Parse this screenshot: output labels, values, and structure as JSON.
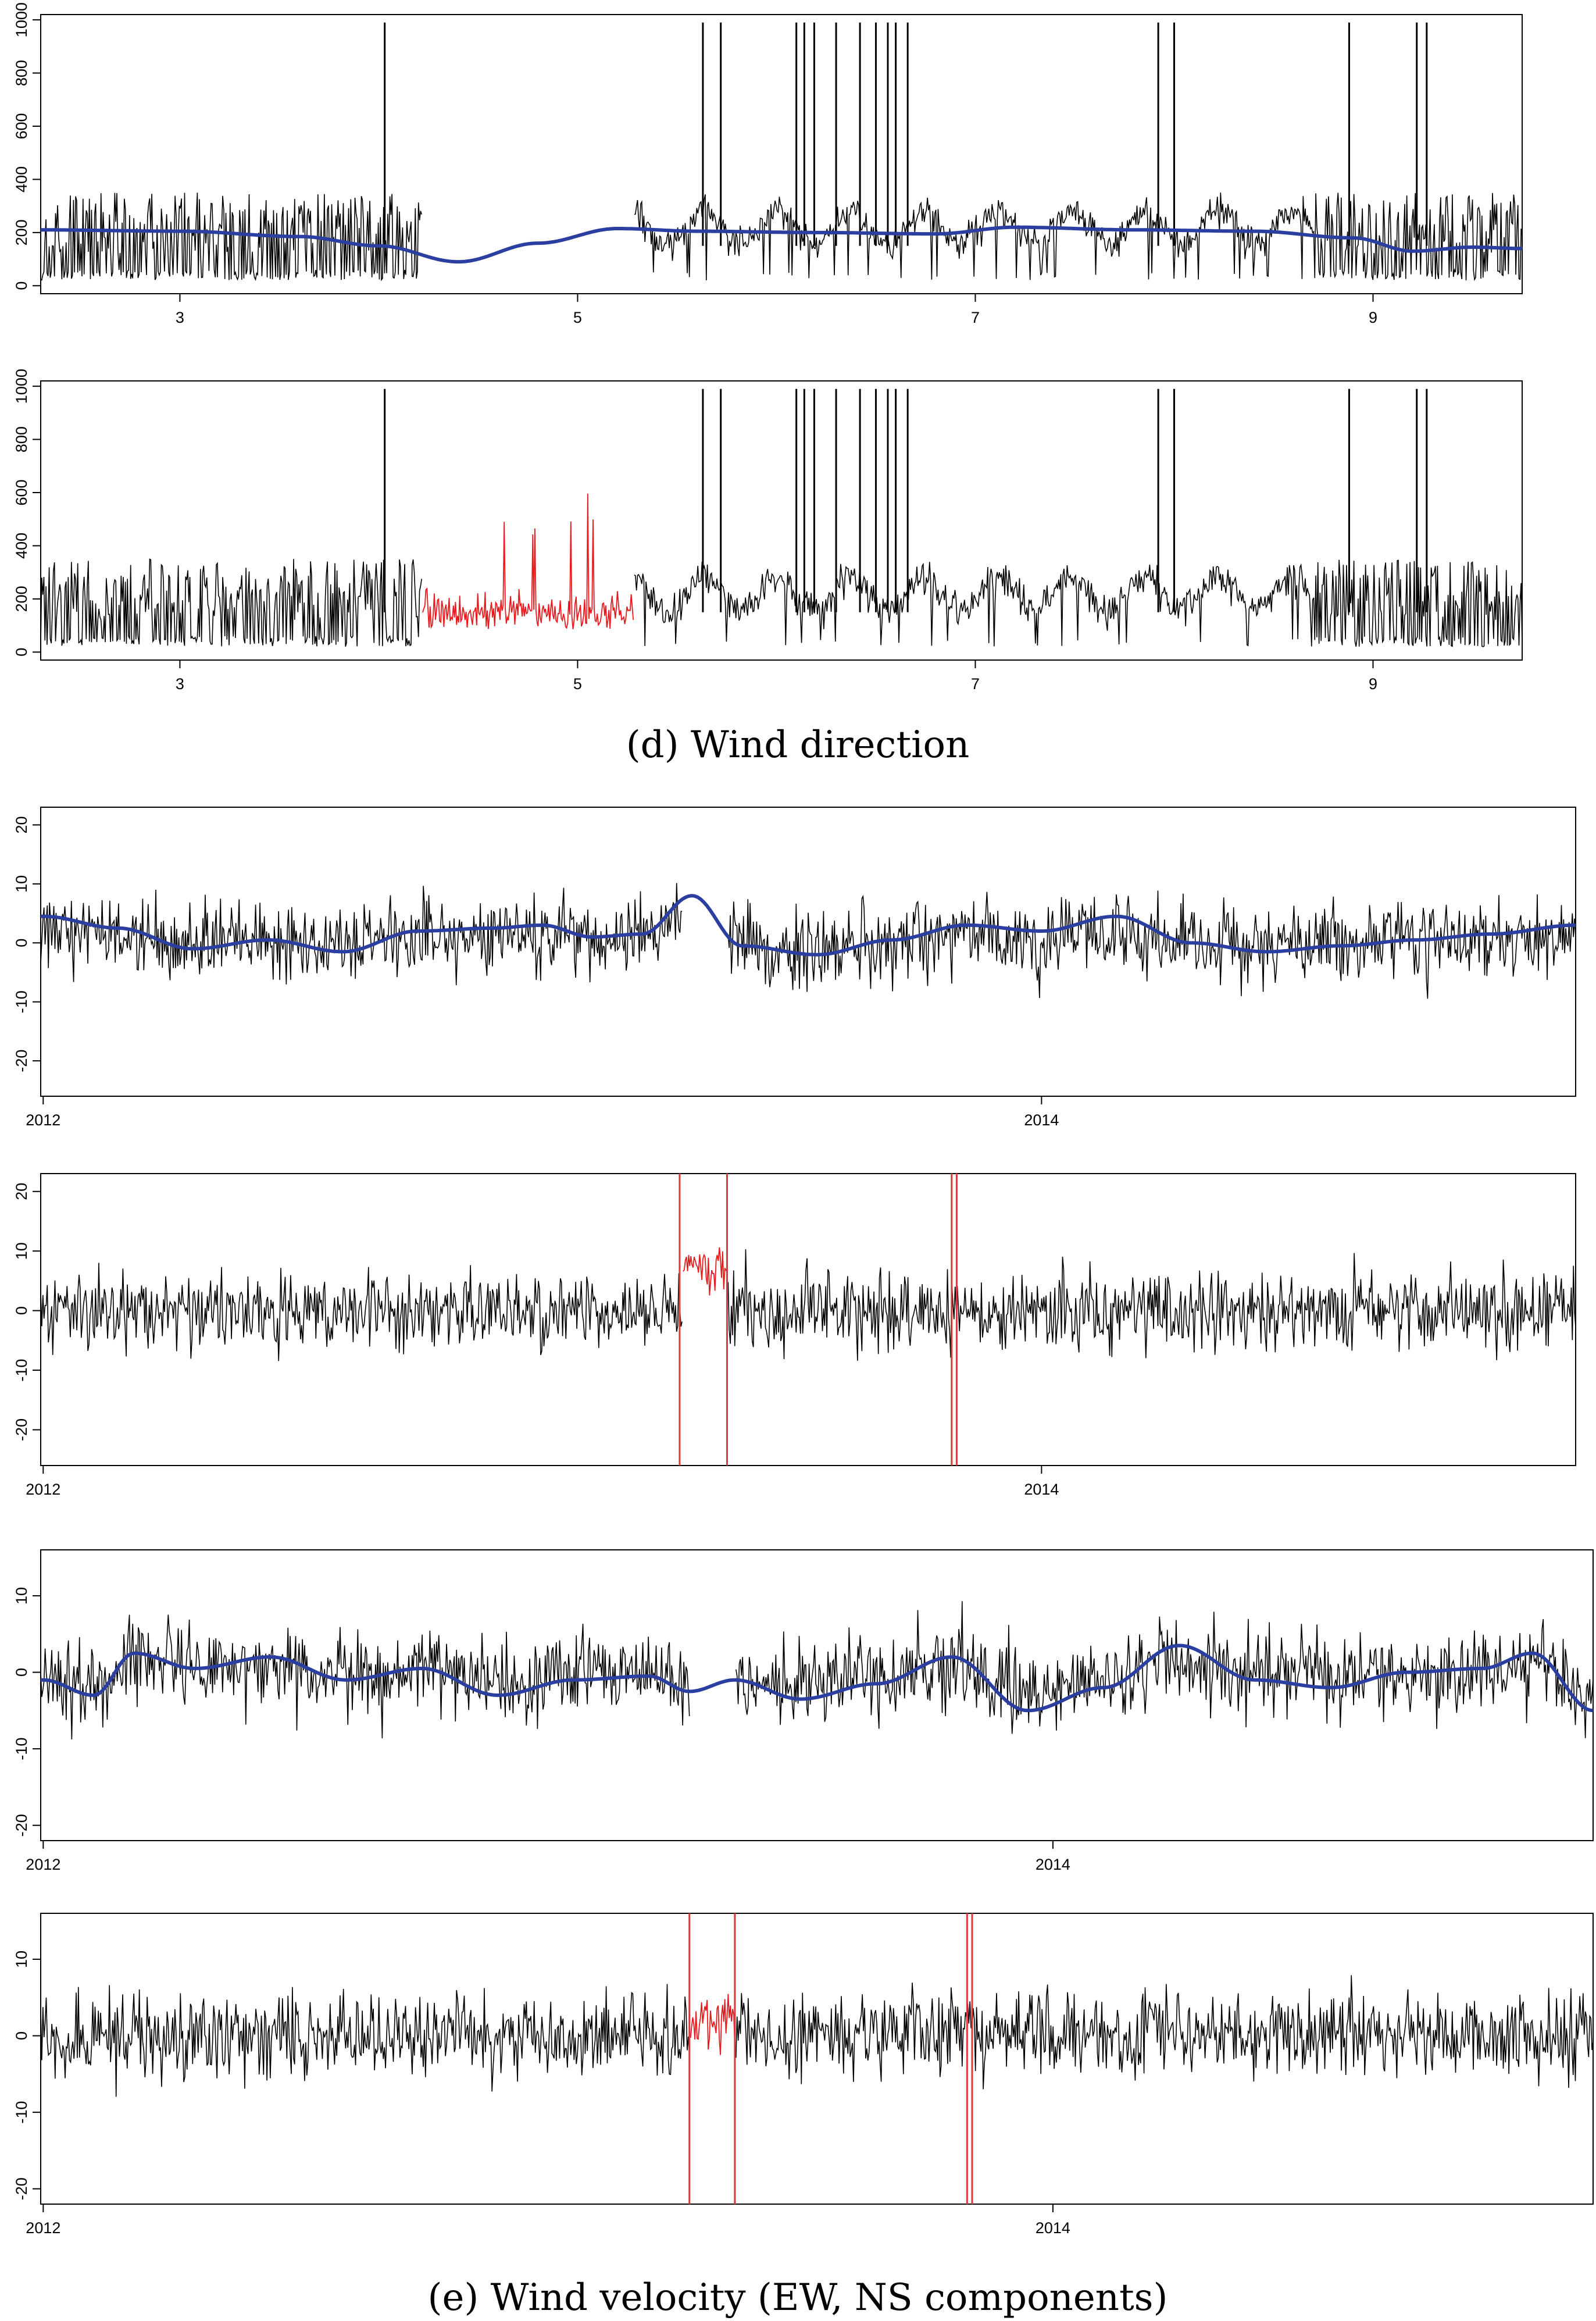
{
  "captions": {
    "d": "(d) Wind direction",
    "e": "(e) Wind velocity (EW, NS components)"
  },
  "colors": {
    "observed": "#000000",
    "trend": "#2b3fa0",
    "imputed": "#e8191c",
    "marker": "#d93a3a"
  },
  "chart_data": [
    {
      "type": "line",
      "panel": "d-1",
      "x_ticks": [
        3,
        5,
        7,
        9
      ],
      "xlim": [
        2.3,
        9.75
      ],
      "y_ticks": [
        0,
        200,
        400,
        600,
        800,
        1000
      ],
      "ylim": [
        -30,
        1020
      ],
      "gaps": [
        [
          4.22,
          5.28
        ]
      ],
      "trend": {
        "x": [
          2.3,
          3.0,
          3.6,
          4.0,
          4.4,
          4.8,
          5.2,
          5.6,
          6.2,
          6.8,
          7.2,
          7.8,
          8.4,
          8.9,
          9.2,
          9.5,
          9.75
        ],
        "y": [
          210,
          205,
          185,
          150,
          90,
          160,
          215,
          205,
          200,
          195,
          220,
          210,
          205,
          180,
          130,
          145,
          140
        ]
      },
      "imputed": null,
      "markers": [],
      "spikes": [
        4.03,
        5.63,
        5.72,
        6.1,
        6.14,
        6.19,
        6.3,
        6.42,
        6.5,
        6.56,
        6.6,
        6.66,
        7.92,
        8.0,
        8.88,
        9.22,
        9.27
      ]
    },
    {
      "type": "line",
      "panel": "d-2",
      "x_ticks": [
        3,
        5,
        7,
        9
      ],
      "xlim": [
        2.3,
        9.75
      ],
      "y_ticks": [
        0,
        200,
        400,
        600,
        800,
        1000
      ],
      "ylim": [
        -30,
        1020
      ],
      "gaps": [],
      "trend": null,
      "imputed": {
        "range": [
          4.22,
          5.28
        ]
      },
      "markers": [],
      "spikes": [
        4.03,
        5.63,
        5.72,
        6.1,
        6.14,
        6.19,
        6.3,
        6.42,
        6.5,
        6.56,
        6.6,
        6.66,
        7.92,
        8.0,
        8.88,
        9.22,
        9.27
      ]
    },
    {
      "type": "line",
      "panel": "e-1",
      "x_ticks": [
        "2012",
        "2014"
      ],
      "xlim": [
        2011.995,
        2015.07
      ],
      "y_ticks": [
        -20,
        -10,
        0,
        10,
        20
      ],
      "ylim": [
        -26,
        23
      ],
      "gaps": [
        [
          2013.28,
          2013.37
        ]
      ],
      "trend": {
        "x": [
          2012.0,
          2012.15,
          2012.3,
          2012.45,
          2012.6,
          2012.75,
          2012.9,
          2013.0,
          2013.1,
          2013.2,
          2013.3,
          2013.4,
          2013.55,
          2013.7,
          2013.85,
          2014.0,
          2014.15,
          2014.3,
          2014.45,
          2014.6,
          2014.75,
          2014.9,
          2015.07
        ],
        "y": [
          4.5,
          2.5,
          -1.0,
          0.5,
          -1.5,
          2.0,
          2.5,
          3.0,
          1.0,
          1.5,
          8.0,
          -0.5,
          -2.0,
          0.5,
          3.0,
          2.0,
          4.5,
          0.0,
          -1.5,
          -0.5,
          0.5,
          1.5,
          3.0
        ]
      },
      "imputed": null,
      "markers": []
    },
    {
      "type": "line",
      "panel": "e-2",
      "x_ticks": [
        "2012",
        "2014"
      ],
      "xlim": [
        2011.995,
        2015.07
      ],
      "y_ticks": [
        -20,
        -10,
        0,
        10,
        20
      ],
      "ylim": [
        -26,
        23
      ],
      "gaps": [],
      "trend": null,
      "imputed": {
        "range": [
          2013.28,
          2013.37
        ]
      },
      "markers": [
        2013.275,
        2013.37,
        2013.82,
        2013.83
      ]
    },
    {
      "type": "line",
      "panel": "e-3",
      "x_ticks": [
        "2012",
        "2014"
      ],
      "xlim": [
        2011.995,
        2015.07
      ],
      "y_ticks": [
        -20,
        -10,
        0,
        10
      ],
      "ylim": [
        -22,
        16
      ],
      "gaps": [
        [
          2013.28,
          2013.37
        ]
      ],
      "trend": {
        "x": [
          2012.0,
          2012.1,
          2012.18,
          2012.3,
          2012.45,
          2012.6,
          2012.75,
          2012.9,
          2013.05,
          2013.2,
          2013.28,
          2013.37,
          2013.5,
          2013.65,
          2013.8,
          2013.95,
          2014.1,
          2014.25,
          2014.4,
          2014.55,
          2014.7,
          2014.85,
          2014.95,
          2015.07
        ],
        "y": [
          -1.0,
          -3.0,
          2.5,
          0.5,
          2.0,
          -1.0,
          0.5,
          -3.0,
          -1.0,
          -0.5,
          -2.5,
          -1.0,
          -3.5,
          -1.5,
          2.0,
          -5.0,
          -2.0,
          3.5,
          -1.0,
          -2.0,
          0.0,
          0.5,
          2.5,
          -5.0
        ]
      },
      "imputed": null,
      "markers": []
    },
    {
      "type": "line",
      "panel": "e-4",
      "x_ticks": [
        "2012",
        "2014"
      ],
      "xlim": [
        2011.995,
        2015.07
      ],
      "y_ticks": [
        -20,
        -10,
        0,
        10
      ],
      "ylim": [
        -22,
        16
      ],
      "gaps": [],
      "trend": null,
      "imputed": {
        "range": [
          2013.28,
          2013.37
        ]
      },
      "markers": [
        2013.28,
        2013.37,
        2013.83,
        2013.84
      ]
    }
  ]
}
